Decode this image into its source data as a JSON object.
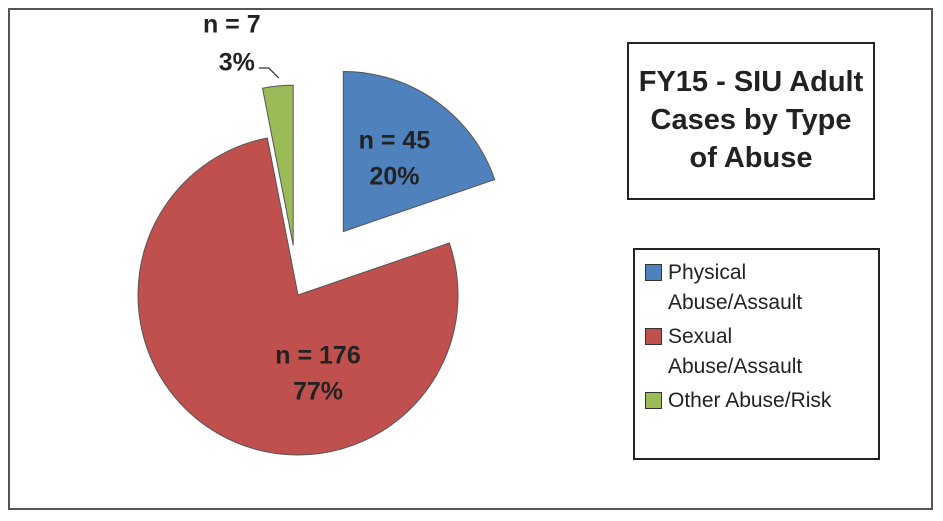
{
  "chart_data": {
    "type": "pie",
    "title": "FY15 - SIU Adult Cases by Type of Abuse",
    "categories": [
      "Physical Abuse/Assault",
      "Sexual Abuse/Assault",
      "Other Abuse/Risk"
    ],
    "values": [
      45,
      176,
      7
    ],
    "value_labels": [
      "n = 45",
      "n = 176",
      "n = 7"
    ],
    "percents": [
      20,
      77,
      3
    ],
    "percent_labels": [
      "20%",
      "77%",
      "3%"
    ],
    "colors": [
      "#4f81bd",
      "#c0504d",
      "#9bbb59"
    ],
    "legend": "right"
  }
}
